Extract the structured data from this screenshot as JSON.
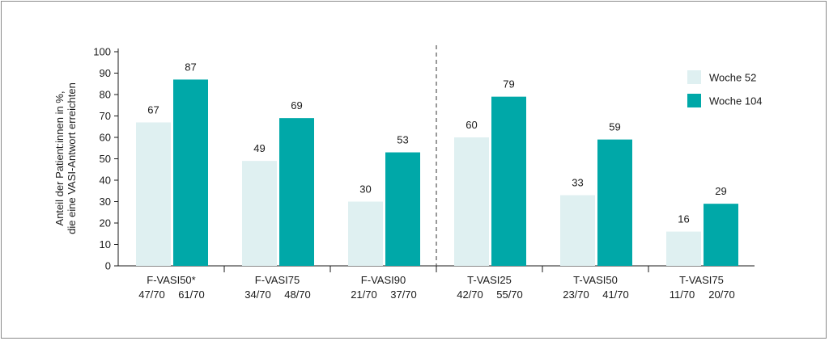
{
  "chart_data": {
    "type": "bar",
    "ylabel_lines": [
      "Anteil der Patient:innen in %,",
      "die eine VASI-Antwort erreichten"
    ],
    "ylim": [
      0,
      100
    ],
    "yticks": [
      "0",
      "10",
      "20",
      "30",
      "40",
      "50",
      "60",
      "70",
      "80",
      "90",
      "100"
    ],
    "categories": [
      {
        "name": "F-VASI50*",
        "n52": "47/70",
        "n104": "61/70"
      },
      {
        "name": "F-VASI75",
        "n52": "34/70",
        "n104": "48/70"
      },
      {
        "name": "F-VASI90",
        "n52": "21/70",
        "n104": "37/70"
      },
      {
        "name": "T-VASI25",
        "n52": "42/70",
        "n104": "55/70"
      },
      {
        "name": "T-VASI50",
        "n52": "23/70",
        "n104": "41/70"
      },
      {
        "name": "T-VASI75",
        "n52": "11/70",
        "n104": "20/70"
      }
    ],
    "series": [
      {
        "name": "Woche 52",
        "color": "#dff0f1",
        "values": [
          67,
          49,
          30,
          60,
          33,
          16
        ]
      },
      {
        "name": "Woche 104",
        "color": "#00a8a8",
        "values": [
          87,
          69,
          53,
          79,
          59,
          29
        ]
      }
    ],
    "legend_position": "top-right",
    "separator_after_category": 3,
    "grid": false
  }
}
